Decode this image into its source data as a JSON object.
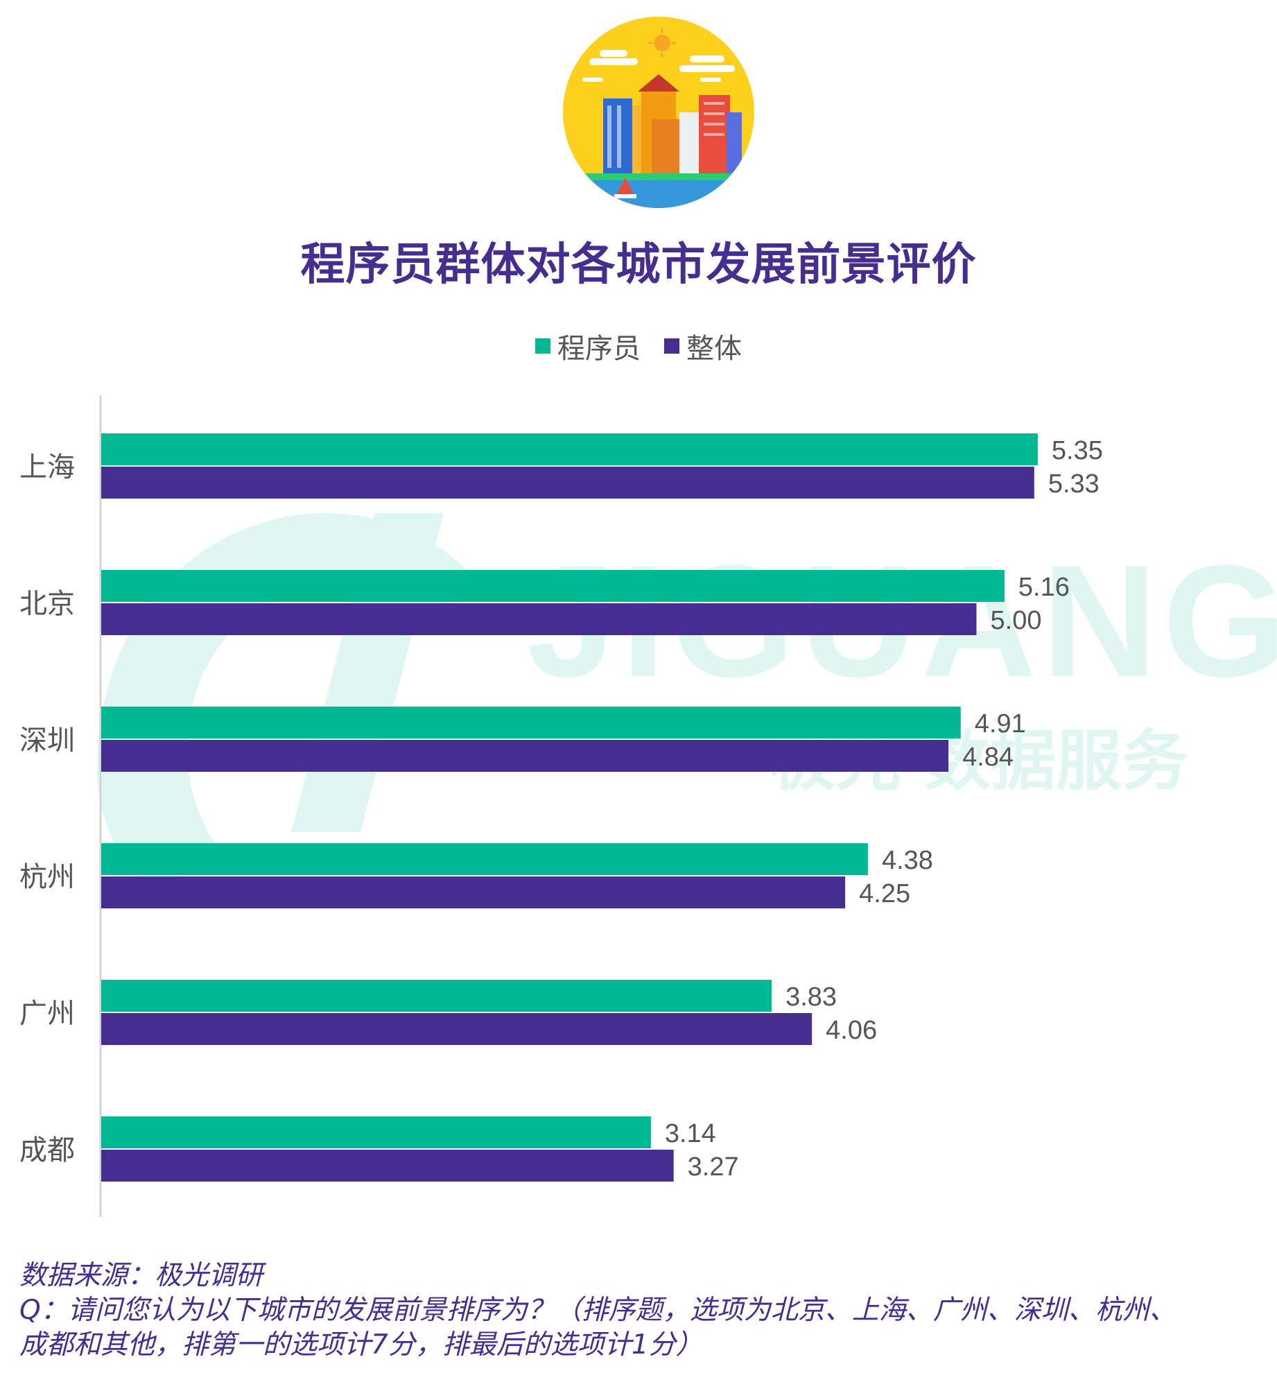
{
  "title": "程序员群体对各城市发展前景评价",
  "watermark": {
    "brand": "JIGUANG",
    "tagline": "极光 数据服务"
  },
  "colors": {
    "programmers": "#00b894",
    "overall": "#462e91",
    "title": "#462e91"
  },
  "legend": [
    {
      "label": "程序员",
      "color": "#00b894"
    },
    {
      "label": "整体",
      "color": "#462e91"
    }
  ],
  "chart_data": {
    "type": "bar",
    "orientation": "horizontal",
    "categories": [
      "上海",
      "北京",
      "深圳",
      "杭州",
      "广州",
      "成都"
    ],
    "series": [
      {
        "name": "程序员",
        "values": [
          5.35,
          5.16,
          4.91,
          4.38,
          3.83,
          3.14
        ]
      },
      {
        "name": "整体",
        "values": [
          5.33,
          5.0,
          4.84,
          4.25,
          4.06,
          3.27
        ]
      }
    ],
    "value_labels": [
      [
        "5.35",
        "5.16",
        "4.91",
        "4.38",
        "3.83",
        "3.14"
      ],
      [
        "5.33",
        "5.00",
        "4.84",
        "4.25",
        "4.06",
        "3.27"
      ]
    ],
    "xlim": [
      0,
      6.0
    ],
    "grid": false,
    "legend_position": "top-center"
  },
  "footer": {
    "source": "数据来源：极光调研",
    "question": "Q：请问您认为以下城市的发展前景排序为？（排序题，选项为北京、上海、广州、深圳、杭州、",
    "question_cont": "成都和其他，排第一的选项计7分，排最后的选项计1分）"
  }
}
